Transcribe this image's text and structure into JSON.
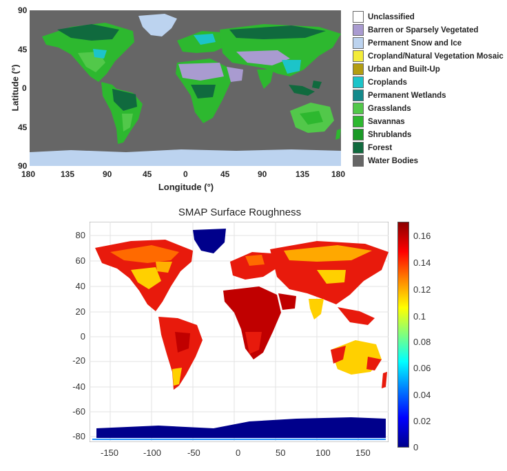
{
  "landcover_map": {
    "ylabel": "Latitude (°)",
    "xlabel": "Longitude (°)",
    "yticks": [
      "90",
      "45",
      "0",
      "45",
      "90"
    ],
    "xticks": [
      "180",
      "135",
      "90",
      "45",
      "0",
      "45",
      "90",
      "135",
      "180"
    ],
    "legend": [
      {
        "label": "Unclassified",
        "color": "#ffffff"
      },
      {
        "label": "Barren or Sparsely Vegetated",
        "color": "#a99bd0"
      },
      {
        "label": "Permanent Snow and Ice",
        "color": "#bcd3ef"
      },
      {
        "label": "Cropland/Natural Vegetation Mosaic",
        "color": "#f3ec3a"
      },
      {
        "label": "Urban and Built-Up",
        "color": "#b39d12"
      },
      {
        "label": "Croplands",
        "color": "#1cc4c9"
      },
      {
        "label": "Permanent Wetlands",
        "color": "#138a8b"
      },
      {
        "label": "Grasslands",
        "color": "#52c84a"
      },
      {
        "label": "Savannas",
        "color": "#2db82f"
      },
      {
        "label": "Shrublands",
        "color": "#1a9a26"
      },
      {
        "label": "Forest",
        "color": "#106a3e"
      },
      {
        "label": "Water Bodies",
        "color": "#666666"
      }
    ]
  },
  "roughness_map": {
    "title": "SMAP  Surface Roughness",
    "yticks": [
      "80",
      "60",
      "40",
      "20",
      "0",
      "-20",
      "-40",
      "-60",
      "-80"
    ],
    "xticks": [
      "-150",
      "-100",
      "-50",
      "0",
      "50",
      "100",
      "150"
    ],
    "colorbar_ticks": [
      "0.16",
      "0.14",
      "0.12",
      "0.1",
      "0.08",
      "0.06",
      "0.04",
      "0.02",
      "0"
    ],
    "colorbar_range": [
      0,
      0.17
    ],
    "colormap": "jet"
  },
  "colors": {
    "water": "#666666",
    "frame": "#333333"
  }
}
